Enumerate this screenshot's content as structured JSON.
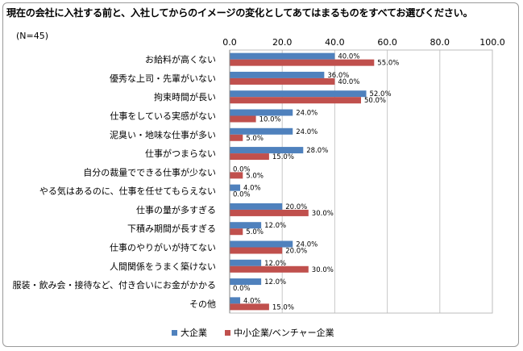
{
  "title": "現在の会社に入社する前と、入社してからのイメージの変化としてあてはまるものをすべてお選びください。",
  "sample_note": "(N=45)",
  "chart_data": {
    "type": "bar",
    "orientation": "horizontal",
    "title": "現在の会社に入社する前と、入社してからのイメージの変化としてあてはまるものをすべてお選びください。",
    "xlim": [
      0,
      100
    ],
    "xticks": [
      "0.0",
      "20.0",
      "40.0",
      "60.0",
      "80.0",
      "100.0"
    ],
    "xtick_values": [
      0,
      20,
      40,
      60,
      80,
      100
    ],
    "grid": true,
    "legend_position": "bottom",
    "categories": [
      "お給料が高くない",
      "優秀な上司・先輩がいない",
      "拘束時間が長い",
      "仕事をしている実感がない",
      "泥臭い・地味な仕事が多い",
      "仕事がつまらない",
      "自分の裁量でできる仕事が少ない",
      "やる気はあるのに、仕事を任せてもらえない",
      "仕事の量が多すぎる",
      "下積み期間が長すぎる",
      "仕事のやりがいが持てない",
      "人間関係をうまく築けない",
      "服装・飲み会・接待など、付き合いにお金がかかる",
      "その他"
    ],
    "series": [
      {
        "name": "大企業",
        "color": "#4f81bd",
        "values": [
          40.0,
          36.0,
          52.0,
          24.0,
          24.0,
          28.0,
          0.0,
          4.0,
          20.0,
          12.0,
          24.0,
          12.0,
          12.0,
          4.0
        ],
        "labels": [
          "40.0%",
          "36.0%",
          "52.0%",
          "24.0%",
          "24.0%",
          "28.0%",
          "0.0%",
          "4.0%",
          "20.0%",
          "12.0%",
          "24.0%",
          "12.0%",
          "12.0%",
          "4.0%"
        ]
      },
      {
        "name": "中小企業/ベンチャー企業",
        "color": "#c0504d",
        "values": [
          55.0,
          40.0,
          50.0,
          10.0,
          5.0,
          15.0,
          5.0,
          0.0,
          30.0,
          5.0,
          20.0,
          30.0,
          0.0,
          15.0
        ],
        "labels": [
          "55.0%",
          "40.0%",
          "50.0%",
          "10.0%",
          "5.0%",
          "15.0%",
          "5.0%",
          "0.0%",
          "30.0%",
          "5.0%",
          "20.0%",
          "30.0%",
          "0.0%",
          "15.0%"
        ]
      }
    ]
  }
}
